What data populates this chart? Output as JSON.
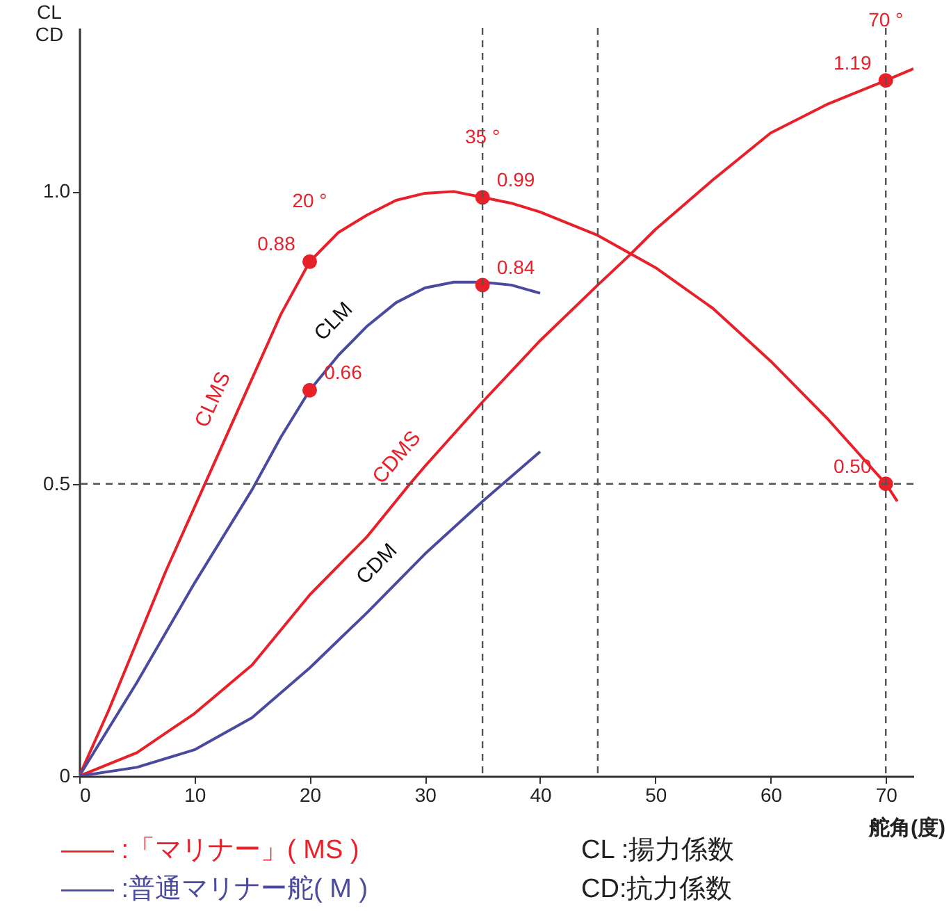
{
  "chart_data": {
    "type": "line",
    "xlabel": "舵角(度)",
    "ylabel": "CL\nCD",
    "xlim": [
      0,
      72.4
    ],
    "xticks": [
      0,
      10,
      20,
      30,
      40,
      50,
      60,
      70
    ],
    "ylim": [
      0,
      1.28
    ],
    "yticks": [
      0,
      0.5,
      {
        "value": 1,
        "label": "1.0"
      }
    ],
    "series": [
      {
        "name": "CLMS",
        "color": "#e8202a",
        "x": [
          0,
          2.5,
          5,
          7.5,
          10,
          12.5,
          15,
          17.5,
          20,
          22.5,
          25,
          27.5,
          30,
          32.5,
          35,
          37.5,
          40,
          45,
          50,
          55,
          60,
          65,
          70,
          71
        ],
        "values": [
          0,
          0.11,
          0.23,
          0.35,
          0.46,
          0.57,
          0.68,
          0.79,
          0.88,
          0.93,
          0.96,
          0.985,
          0.997,
          1.0,
          0.99,
          0.98,
          0.965,
          0.925,
          0.87,
          0.8,
          0.71,
          0.61,
          0.5,
          0.47
        ]
      },
      {
        "name": "CLM",
        "color": "#4a4a9e",
        "x": [
          0,
          5,
          10,
          15,
          17.5,
          20,
          22.5,
          25,
          27.5,
          30,
          32.5,
          35,
          37.5,
          40
        ],
        "values": [
          0,
          0.16,
          0.33,
          0.49,
          0.58,
          0.66,
          0.72,
          0.77,
          0.81,
          0.835,
          0.845,
          0.845,
          0.84,
          0.826
        ]
      },
      {
        "name": "CDMS",
        "color": "#e8202a",
        "x": [
          0,
          5,
          10,
          15,
          20,
          25,
          28.7,
          30,
          35,
          40,
          45,
          47.7,
          50,
          55,
          60,
          65,
          70,
          72.4
        ],
        "values": [
          0,
          0.04,
          0.107,
          0.19,
          0.31,
          0.41,
          0.5,
          0.53,
          0.64,
          0.745,
          0.84,
          0.89,
          0.935,
          1.02,
          1.1,
          1.15,
          1.19,
          1.21
        ]
      },
      {
        "name": "CDM",
        "color": "#4a4a9e",
        "x": [
          0,
          5,
          10,
          15,
          20,
          25,
          30,
          35,
          40
        ],
        "values": [
          0,
          0.015,
          0.045,
          0.1,
          0.185,
          0.28,
          0.38,
          0.47,
          0.555
        ]
      },
      {
        "type": "scatter",
        "color": "#e8202a",
        "marker": "circle",
        "x": [
          20,
          20,
          35,
          35,
          70,
          70
        ],
        "values": [
          0.88,
          0.66,
          0.99,
          0.84,
          1.19,
          0.5
        ],
        "value_labels": [
          "0.88",
          "0.66",
          "0.99",
          "0.84",
          "1.19",
          "0.50"
        ]
      }
    ],
    "ref_lines": [
      {
        "axis": "y",
        "value": 0.5,
        "color": "#555555",
        "line_style": "dashed"
      },
      {
        "axis": "x",
        "value": 35,
        "color": "#555555",
        "line_style": "dashed"
      },
      {
        "axis": "x",
        "value": 45,
        "color": "#555555",
        "line_style": "dashed"
      },
      {
        "axis": "x",
        "value": 70,
        "color": "#555555",
        "line_style": "dashed"
      }
    ],
    "annotations": [
      "20 °",
      "35 °",
      "70 °",
      "—— :「マリナー」( MS )",
      "—— :普通マリナー舵( M )",
      "CL :揚力係数",
      "CD:抗力係数"
    ],
    "grid": false
  }
}
